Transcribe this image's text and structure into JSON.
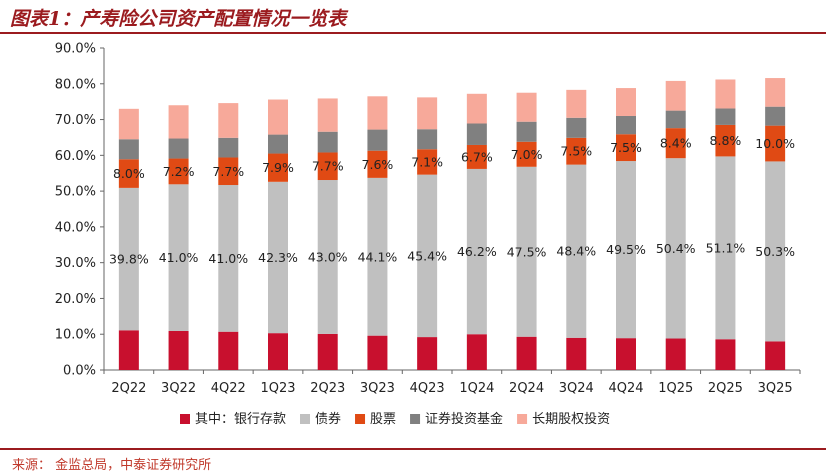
{
  "header": {
    "title": "图表1：产寿险公司资产配置情况一览表"
  },
  "footer": {
    "source": "来源：  金监总局，中泰证券研究所"
  },
  "colors": {
    "bank_deposit": "#c8102e",
    "bonds": "#c0c0c0",
    "stocks": "#e04a14",
    "funds": "#808080",
    "equity": "#f7a99a",
    "header_line": "#9b1b1f"
  },
  "chart_data": {
    "type": "bar",
    "stacked": true,
    "categories": [
      "2Q22",
      "3Q22",
      "4Q22",
      "1Q23",
      "2Q23",
      "3Q23",
      "4Q23",
      "1Q24",
      "2Q24",
      "3Q24",
      "4Q24",
      "1Q25",
      "2Q25",
      "3Q25"
    ],
    "ylim": [
      0,
      90
    ],
    "yticks": [
      "0.0%",
      "10.0%",
      "20.0%",
      "30.0%",
      "40.0%",
      "50.0%",
      "60.0%",
      "70.0%",
      "80.0%",
      "90.0%"
    ],
    "grid": false,
    "legend": "bottom",
    "legend_prefix": "其中：",
    "series": [
      {
        "name": "银行存款",
        "color_key": "bank_deposit",
        "values": [
          11.1,
          10.9,
          10.7,
          10.3,
          10.1,
          9.6,
          9.2,
          10.0,
          9.3,
          9.0,
          8.9,
          8.8,
          8.6,
          8.0
        ]
      },
      {
        "name": "债券",
        "color_key": "bonds",
        "values": [
          39.8,
          41.0,
          41.0,
          42.3,
          43.0,
          44.1,
          45.4,
          46.2,
          47.5,
          48.4,
          49.5,
          50.4,
          51.1,
          50.3
        ]
      },
      {
        "name": "股票",
        "color_key": "stocks",
        "values": [
          8.0,
          7.2,
          7.7,
          7.9,
          7.7,
          7.6,
          7.1,
          6.7,
          7.0,
          7.5,
          7.5,
          8.4,
          8.8,
          10.0
        ]
      },
      {
        "name": "证券投资基金",
        "color_key": "funds",
        "values": [
          5.6,
          5.6,
          5.5,
          5.3,
          5.8,
          5.9,
          5.6,
          6.0,
          5.6,
          5.6,
          5.1,
          4.9,
          4.6,
          5.3
        ]
      },
      {
        "name": "长期股权投资",
        "color_key": "equity",
        "values": [
          8.5,
          9.3,
          9.7,
          9.8,
          9.3,
          9.3,
          8.9,
          8.3,
          8.1,
          7.8,
          7.8,
          8.3,
          8.1,
          8.0
        ]
      }
    ],
    "data_labels": {
      "bonds": [
        "39.8%",
        "41.0%",
        "41.0%",
        "42.3%",
        "43.0%",
        "44.1%",
        "45.4%",
        "46.2%",
        "47.5%",
        "48.4%",
        "49.5%",
        "50.4%",
        "51.1%",
        "50.3%"
      ],
      "stocks": [
        "8.0%",
        "7.2%",
        "7.7%",
        "7.9%",
        "7.7%",
        "7.6%",
        "7.1%",
        "6.7%",
        "7.0%",
        "7.5%",
        "7.5%",
        "8.4%",
        "8.8%",
        "10.0%"
      ]
    }
  }
}
